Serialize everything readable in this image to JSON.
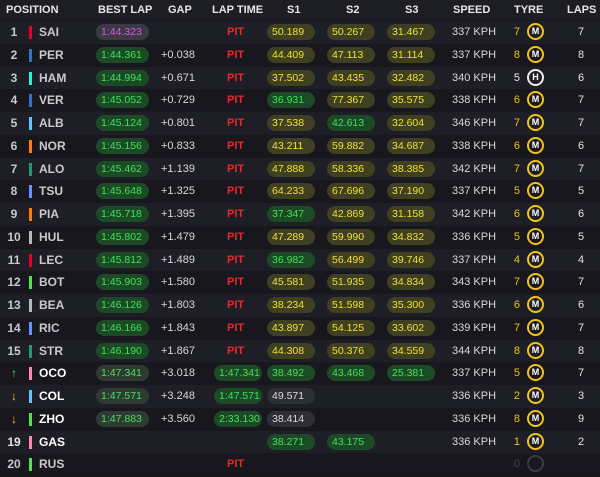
{
  "header": {
    "position": "POSITION",
    "best_lap": "BEST LAP",
    "gap": "GAP",
    "lap_time": "LAP TIME",
    "s1": "S1",
    "s2": "S2",
    "s3": "S3",
    "speed": "SPEED",
    "tyre": "TYRE",
    "laps": "LAPS"
  },
  "colors": {
    "purple_time": "#d858e6",
    "green_time": "#3ee25a",
    "yellow_time": "#f1e233",
    "pit": "#e8282c",
    "medium_tyre": "#f0c419",
    "hard_tyre": "#ececec"
  },
  "rows": [
    {
      "pos": "1",
      "team_color": "#e8002d",
      "driver": "SAI",
      "best": "1:44.323",
      "best_style": "purple",
      "gap": "",
      "lap_time": "PIT",
      "s1": "50.189",
      "s1c": "y",
      "s2": "50.267",
      "s2c": "y",
      "s3": "31.467",
      "s3c": "y",
      "speed": "337 KPH",
      "tyre_laps": "7",
      "tyre": "M",
      "laps": "7"
    },
    {
      "pos": "2",
      "team_color": "#3671c6",
      "driver": "PER",
      "best": "1:44.361",
      "best_style": "green",
      "gap": "+0.038",
      "lap_time": "PIT",
      "s1": "44.409",
      "s1c": "y",
      "s2": "47.113",
      "s2c": "y",
      "s3": "31.114",
      "s3c": "y",
      "speed": "337 KPH",
      "tyre_laps": "8",
      "tyre": "M",
      "laps": "8"
    },
    {
      "pos": "3",
      "team_color": "#27f4d2",
      "driver": "HAM",
      "best": "1:44.994",
      "best_style": "green",
      "gap": "+0.671",
      "lap_time": "PIT",
      "s1": "37.502",
      "s1c": "y",
      "s2": "43.435",
      "s2c": "y",
      "s3": "32.482",
      "s3c": "y",
      "speed": "340 KPH",
      "tyre_laps": "5",
      "tyre": "H",
      "laps": "6"
    },
    {
      "pos": "4",
      "team_color": "#3671c6",
      "driver": "VER",
      "best": "1:45.052",
      "best_style": "green",
      "gap": "+0.729",
      "lap_time": "PIT",
      "s1": "36.931",
      "s1c": "g",
      "s2": "77.367",
      "s2c": "y",
      "s3": "35.575",
      "s3c": "y",
      "speed": "338 KPH",
      "tyre_laps": "6",
      "tyre": "M",
      "laps": "7"
    },
    {
      "pos": "5",
      "team_color": "#64c4ff",
      "driver": "ALB",
      "best": "1:45.124",
      "best_style": "green",
      "gap": "+0.801",
      "lap_time": "PIT",
      "s1": "37.538",
      "s1c": "y",
      "s2": "42.613",
      "s2c": "g",
      "s3": "32.604",
      "s3c": "y",
      "speed": "346 KPH",
      "tyre_laps": "7",
      "tyre": "M",
      "laps": "7"
    },
    {
      "pos": "6",
      "team_color": "#ff8000",
      "driver": "NOR",
      "best": "1:45.156",
      "best_style": "green",
      "gap": "+0.833",
      "lap_time": "PIT",
      "s1": "43.211",
      "s1c": "y",
      "s2": "59.882",
      "s2c": "y",
      "s3": "34.687",
      "s3c": "y",
      "speed": "338 KPH",
      "tyre_laps": "6",
      "tyre": "M",
      "laps": "6"
    },
    {
      "pos": "7",
      "team_color": "#229971",
      "driver": "ALO",
      "best": "1:45.462",
      "best_style": "green",
      "gap": "+1.139",
      "lap_time": "PIT",
      "s1": "47.888",
      "s1c": "y",
      "s2": "58.336",
      "s2c": "y",
      "s3": "38.385",
      "s3c": "y",
      "speed": "342 KPH",
      "tyre_laps": "7",
      "tyre": "M",
      "laps": "7"
    },
    {
      "pos": "8",
      "team_color": "#6692ff",
      "driver": "TSU",
      "best": "1:45.648",
      "best_style": "green",
      "gap": "+1.325",
      "lap_time": "PIT",
      "s1": "64.233",
      "s1c": "y",
      "s2": "67.696",
      "s2c": "y",
      "s3": "37.190",
      "s3c": "y",
      "speed": "337 KPH",
      "tyre_laps": "5",
      "tyre": "M",
      "laps": "5"
    },
    {
      "pos": "9",
      "team_color": "#ff8000",
      "driver": "PIA",
      "best": "1:45.718",
      "best_style": "green",
      "gap": "+1.395",
      "lap_time": "PIT",
      "s1": "37.347",
      "s1c": "g",
      "s2": "42.869",
      "s2c": "y",
      "s3": "31.158",
      "s3c": "y",
      "speed": "342 KPH",
      "tyre_laps": "6",
      "tyre": "M",
      "laps": "6"
    },
    {
      "pos": "10",
      "team_color": "#b6babd",
      "driver": "HUL",
      "best": "1:45.802",
      "best_style": "green",
      "gap": "+1.479",
      "lap_time": "PIT",
      "s1": "47.289",
      "s1c": "y",
      "s2": "59.990",
      "s2c": "y",
      "s3": "34.832",
      "s3c": "y",
      "speed": "336 KPH",
      "tyre_laps": "5",
      "tyre": "M",
      "laps": "5"
    },
    {
      "pos": "11",
      "team_color": "#e8002d",
      "driver": "LEC",
      "best": "1:45.812",
      "best_style": "green",
      "gap": "+1.489",
      "lap_time": "PIT",
      "s1": "36.982",
      "s1c": "g",
      "s2": "56.499",
      "s2c": "y",
      "s3": "39.746",
      "s3c": "y",
      "speed": "337 KPH",
      "tyre_laps": "4",
      "tyre": "M",
      "laps": "4"
    },
    {
      "pos": "12",
      "team_color": "#52e252",
      "driver": "BOT",
      "best": "1:45.903",
      "best_style": "green",
      "gap": "+1.580",
      "lap_time": "PIT",
      "s1": "45.581",
      "s1c": "y",
      "s2": "51.935",
      "s2c": "y",
      "s3": "34.834",
      "s3c": "y",
      "speed": "343 KPH",
      "tyre_laps": "7",
      "tyre": "M",
      "laps": "7"
    },
    {
      "pos": "13",
      "team_color": "#b6babd",
      "driver": "BEA",
      "best": "1:46.126",
      "best_style": "green",
      "gap": "+1.803",
      "lap_time": "PIT",
      "s1": "38.234",
      "s1c": "y",
      "s2": "51.598",
      "s2c": "y",
      "s3": "35.300",
      "s3c": "y",
      "speed": "336 KPH",
      "tyre_laps": "6",
      "tyre": "M",
      "laps": "6"
    },
    {
      "pos": "14",
      "team_color": "#6692ff",
      "driver": "RIC",
      "best": "1:46.166",
      "best_style": "green",
      "gap": "+1.843",
      "lap_time": "PIT",
      "s1": "43.897",
      "s1c": "y",
      "s2": "54.125",
      "s2c": "y",
      "s3": "33.602",
      "s3c": "y",
      "speed": "339 KPH",
      "tyre_laps": "7",
      "tyre": "M",
      "laps": "7"
    },
    {
      "pos": "15",
      "team_color": "#229971",
      "driver": "STR",
      "best": "1:46.190",
      "best_style": "green",
      "gap": "+1.867",
      "lap_time": "PIT",
      "s1": "44.308",
      "s1c": "y",
      "s2": "50.376",
      "s2c": "y",
      "s3": "34.559",
      "s3c": "y",
      "speed": "344 KPH",
      "tyre_laps": "8",
      "tyre": "M",
      "laps": "8"
    },
    {
      "pos": "↑",
      "arrow_color": "#3ee25a",
      "team_color": "#ff87bc",
      "driver": "OCO",
      "driver_bright": true,
      "best": "1:47.341",
      "best_style": "dark",
      "gap": "+3.018",
      "lap_time": "1:47.341",
      "s1": "38.492",
      "s1c": "g",
      "s2": "43.468",
      "s2c": "g",
      "s3": "25.381",
      "s3c": "g",
      "speed": "337 KPH",
      "tyre_laps": "5",
      "tyre": "M",
      "laps": "7"
    },
    {
      "pos": "↓",
      "arrow_color": "#f0c419",
      "team_color": "#64c4ff",
      "driver": "COL",
      "driver_bright": true,
      "best": "1:47.571",
      "best_style": "dark",
      "gap": "+3.248",
      "lap_time": "1:47.571",
      "s1": "49.571",
      "s1c": "w",
      "s2": "",
      "s2c": "",
      "s3": "",
      "s3c": "",
      "speed": "336 KPH",
      "tyre_laps": "2",
      "tyre": "M",
      "laps": "3"
    },
    {
      "pos": "↓",
      "arrow_color": "#f0c419",
      "team_color": "#52e252",
      "driver": "ZHO",
      "driver_bright": true,
      "best": "1:47.883",
      "best_style": "dark",
      "gap": "+3.560",
      "lap_time": "2:33.130",
      "s1": "38.414",
      "s1c": "w",
      "s2": "",
      "s2c": "",
      "s3": "",
      "s3c": "",
      "speed": "336 KPH",
      "tyre_laps": "8",
      "tyre": "M",
      "laps": "9"
    },
    {
      "pos": "19",
      "pos_plain": true,
      "team_color": "#ff87bc",
      "driver": "GAS",
      "driver_bright": true,
      "best": "",
      "best_style": "",
      "gap": "",
      "lap_time": "",
      "s1": "38.271",
      "s1c": "g",
      "s2": "43.175",
      "s2c": "g",
      "s3": "",
      "s3c": "",
      "speed": "336 KPH",
      "tyre_laps": "1",
      "tyre": "M",
      "laps": "2"
    },
    {
      "pos": "20",
      "team_color": "#52e252",
      "driver": "RUS",
      "best": "",
      "best_style": "",
      "gap": "",
      "lap_time": "PIT",
      "s1": "",
      "s1c": "",
      "s2": "",
      "s2c": "",
      "s3": "",
      "s3c": "",
      "speed": "",
      "tyre_laps": "0",
      "tyre": "none",
      "laps": ""
    }
  ]
}
